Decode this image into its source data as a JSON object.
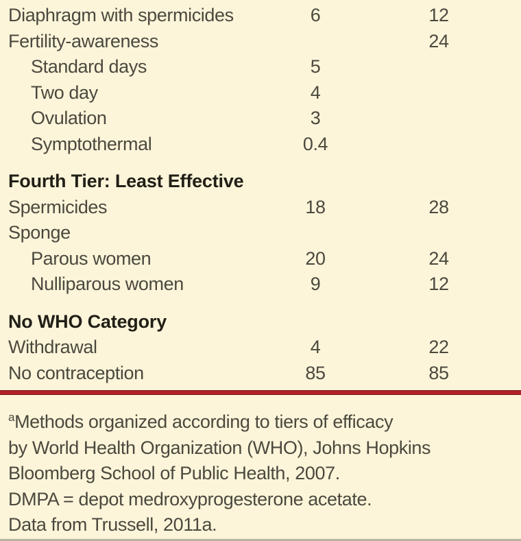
{
  "colors": {
    "bg": "#fcf5da",
    "text": "#4b493e",
    "heading": "#211f16",
    "red": "#b0232a",
    "red-dark": "#7f1116",
    "bottom-rule": "#b9b4a2"
  },
  "table": {
    "rows": [
      {
        "label": "Diaphragm with spermicides",
        "col1": "6",
        "col2": "12",
        "indent": false,
        "heading": false,
        "gap_before": false
      },
      {
        "label": "Fertility-awareness",
        "col1": "",
        "col2": "24",
        "indent": false,
        "heading": false,
        "gap_before": false
      },
      {
        "label": "Standard days",
        "col1": "5",
        "col2": "",
        "indent": true,
        "heading": false,
        "gap_before": false
      },
      {
        "label": "Two day",
        "col1": "4",
        "col2": "",
        "indent": true,
        "heading": false,
        "gap_before": false
      },
      {
        "label": "Ovulation",
        "col1": "3",
        "col2": "",
        "indent": true,
        "heading": false,
        "gap_before": false
      },
      {
        "label": "Symptothermal",
        "col1": "0.4",
        "col2": "",
        "indent": true,
        "heading": false,
        "gap_before": false
      },
      {
        "label": "Fourth Tier: Least Effective",
        "col1": "",
        "col2": "",
        "indent": false,
        "heading": true,
        "gap_before": true
      },
      {
        "label": "Spermicides",
        "col1": "18",
        "col2": "28",
        "indent": false,
        "heading": false,
        "gap_before": false
      },
      {
        "label": "Sponge",
        "col1": "",
        "col2": "",
        "indent": false,
        "heading": false,
        "gap_before": false
      },
      {
        "label": "Parous women",
        "col1": "20",
        "col2": "24",
        "indent": true,
        "heading": false,
        "gap_before": false
      },
      {
        "label": "Nulliparous women",
        "col1": "9",
        "col2": "12",
        "indent": true,
        "heading": false,
        "gap_before": false
      },
      {
        "label": "No WHO Category",
        "col1": "",
        "col2": "",
        "indent": false,
        "heading": true,
        "gap_before": true
      },
      {
        "label": "Withdrawal",
        "col1": "4",
        "col2": "22",
        "indent": false,
        "heading": false,
        "gap_before": false
      },
      {
        "label": "No contraception",
        "col1": "85",
        "col2": "85",
        "indent": false,
        "heading": false,
        "gap_before": false
      }
    ]
  },
  "footnote": {
    "superscript_marker": "a",
    "lines": [
      "Methods organized according to tiers of efficacy",
      "by World Health Organization (WHO), Johns Hopkins",
      "Bloomberg School of Public Health, 2007.",
      "DMPA = depot medroxyprogesterone acetate.",
      "Data from Trussell, 2011a."
    ]
  }
}
